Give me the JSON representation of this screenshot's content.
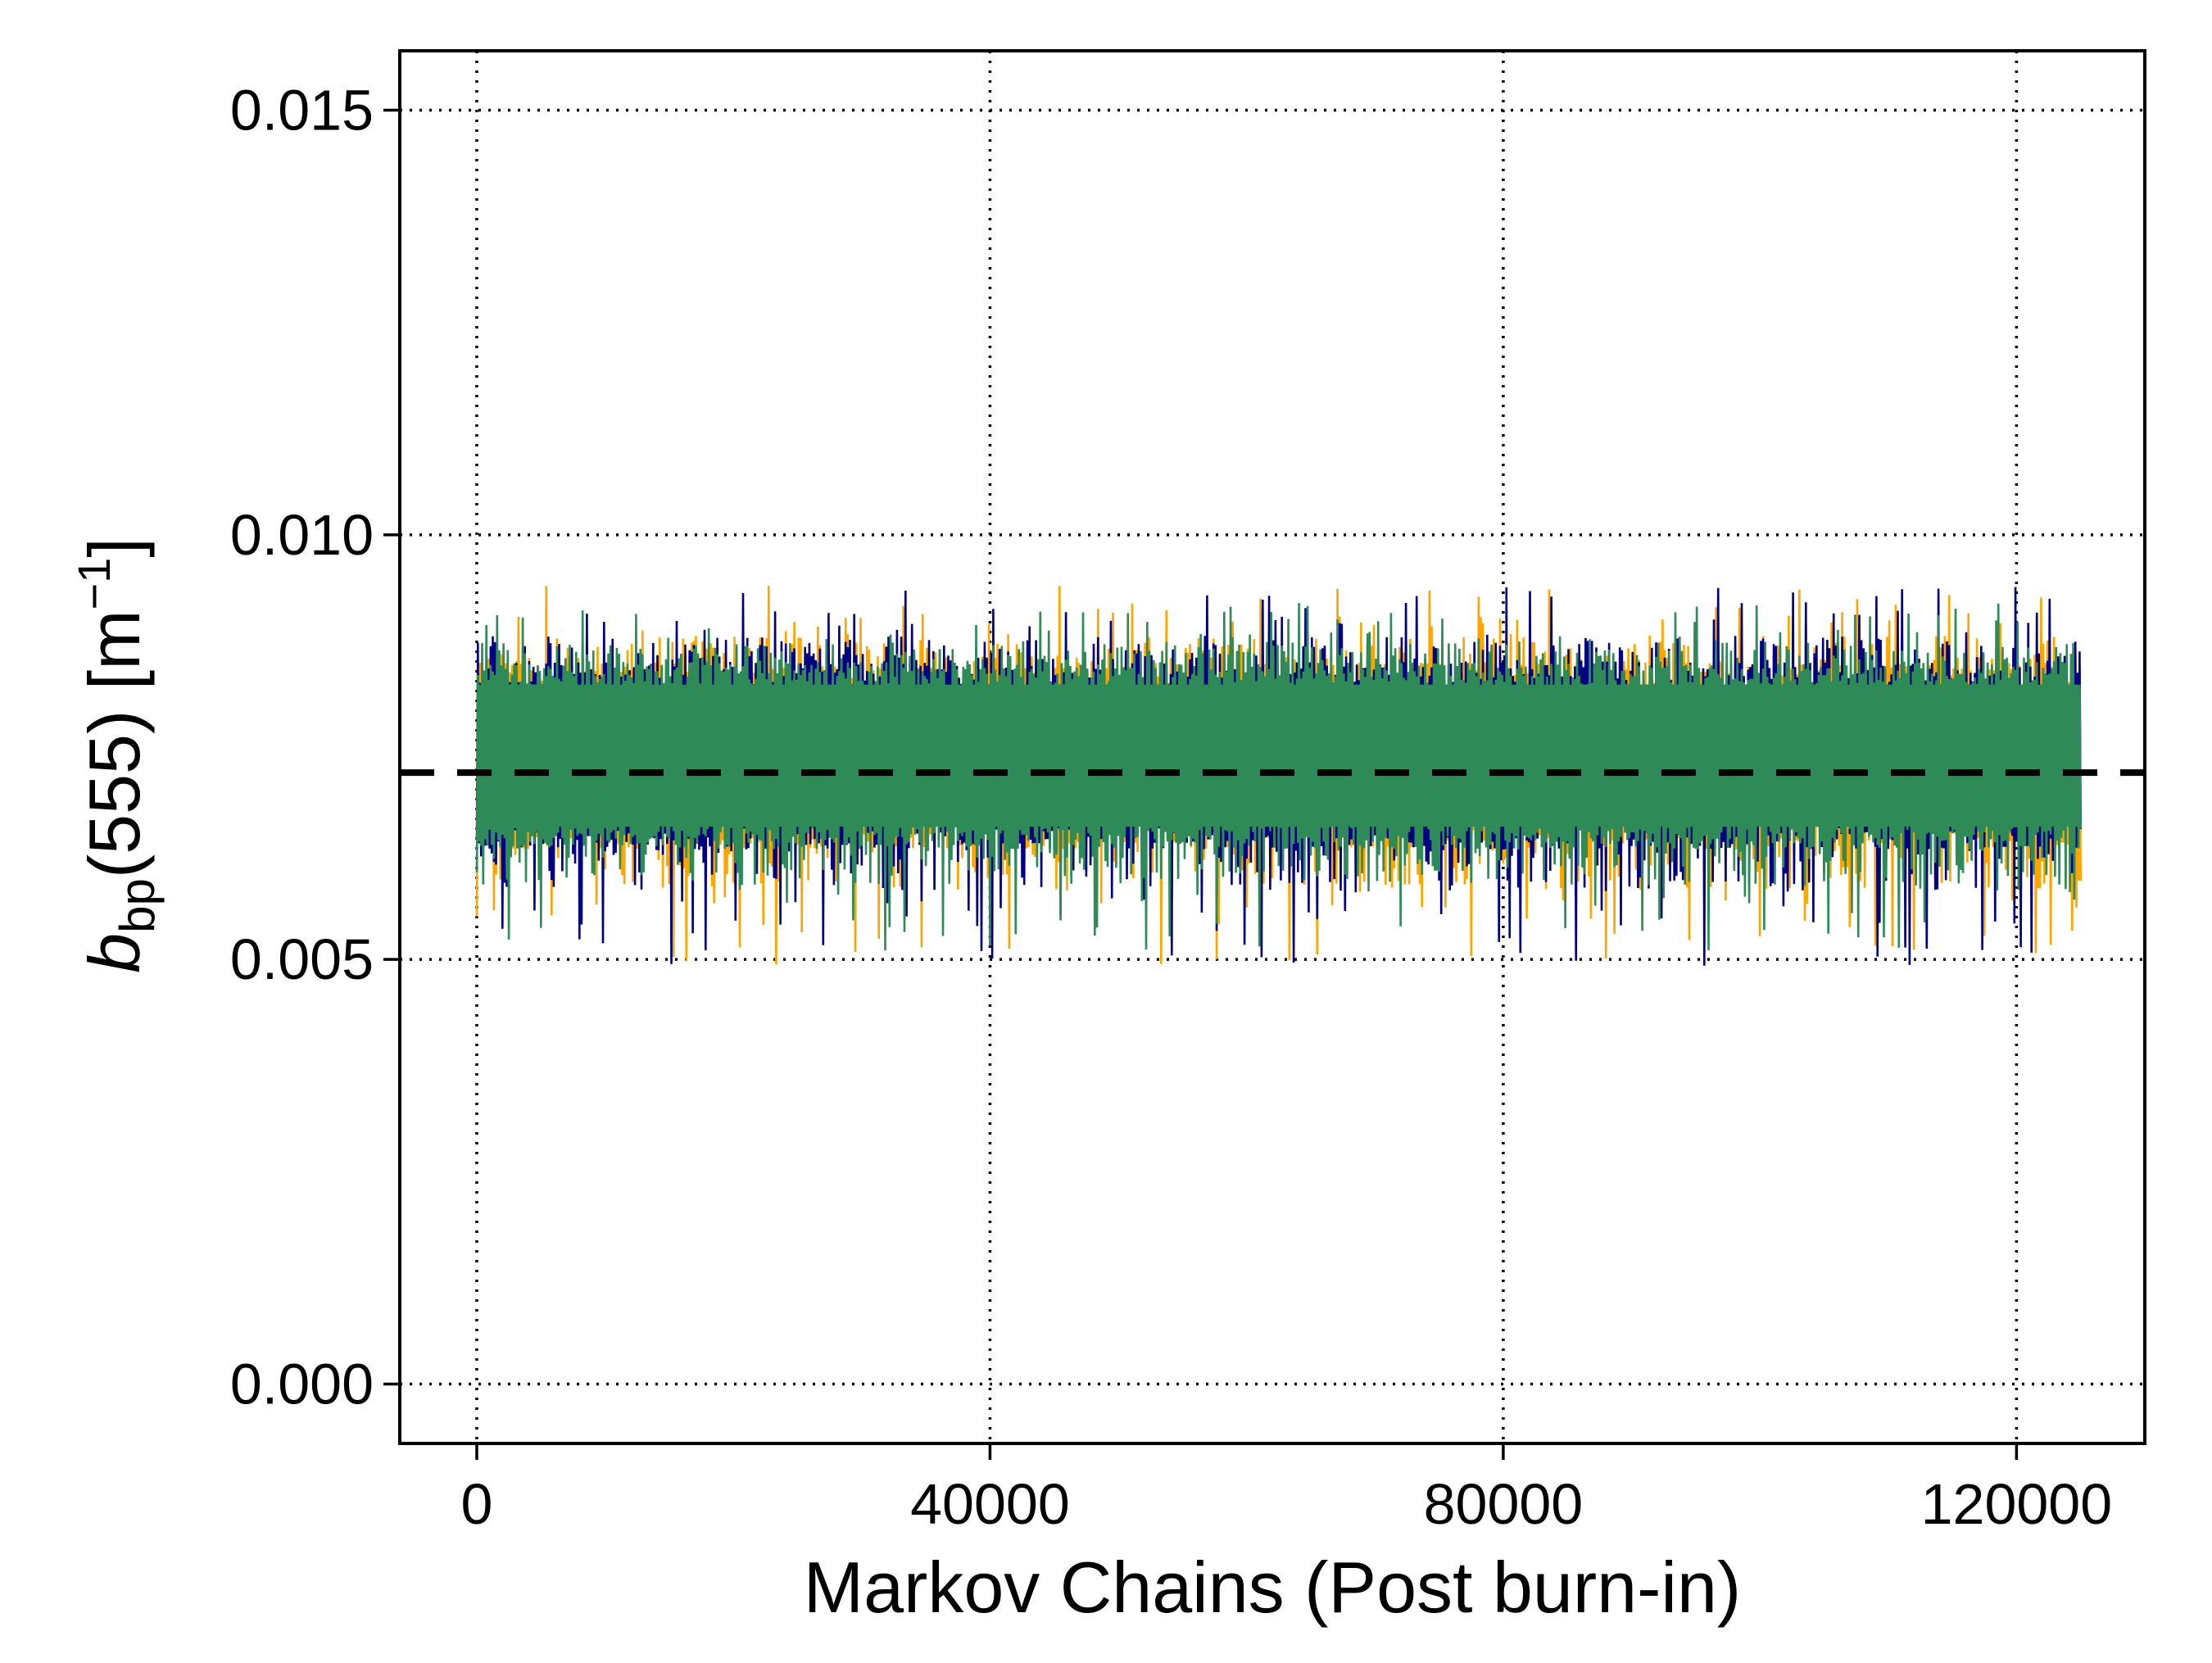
{
  "chart_data": {
    "type": "line",
    "xlabel": "Markov Chains (Post burn-in)",
    "ylabel": {
      "symbol": "b",
      "subscript": "bp",
      "wavelength": "(555)",
      "unit_open": " [m",
      "unit_superscript": "−1",
      "unit_close": "]"
    },
    "xlim": [
      -6000,
      130000
    ],
    "ylim": [
      -0.0007,
      0.0157
    ],
    "x_ticks": [
      0,
      40000,
      80000,
      120000
    ],
    "x_tick_labels": [
      "0",
      "40000",
      "80000",
      "120000"
    ],
    "y_ticks": [
      0.0,
      0.005,
      0.01,
      0.015
    ],
    "y_tick_labels": [
      "0.000",
      "0.005",
      "0.010",
      "0.015"
    ],
    "grid": true,
    "legend": "none",
    "reference_line": {
      "y": 0.0072,
      "style": "dashed",
      "color": "#000000"
    },
    "series": [
      {
        "color": "#FFA500",
        "x_range": [
          0,
          125000
        ],
        "band_bottom": 0.0063,
        "band_top": 0.0085,
        "envelope_min": 0.0049,
        "envelope_max": 0.0094
      },
      {
        "color": "#000080",
        "x_range": [
          0,
          125000
        ],
        "band_bottom": 0.0063,
        "band_top": 0.0085,
        "envelope_min": 0.0049,
        "envelope_max": 0.0094
      },
      {
        "color": "#2E8B57",
        "x_range": [
          0,
          125000
        ],
        "band_bottom": 0.0063,
        "band_top": 0.0085,
        "envelope_min": 0.0051,
        "envelope_max": 0.0092
      }
    ]
  }
}
